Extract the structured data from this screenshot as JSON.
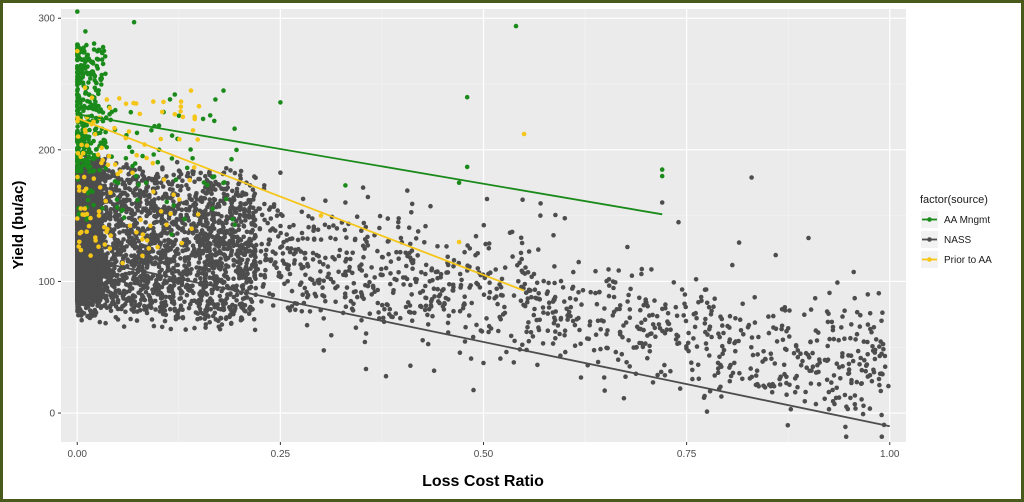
{
  "chart_data": {
    "type": "scatter",
    "title": "",
    "xlabel": "Loss Cost Ratio",
    "ylabel": "Yield (bu/ac)",
    "xlim": [
      -0.02,
      1.02
    ],
    "ylim": [
      -22,
      307
    ],
    "x_ticks": [
      0.0,
      0.25,
      0.5,
      0.75,
      1.0
    ],
    "x_tick_labels": [
      "0.00",
      "0.25",
      "0.50",
      "0.75",
      "1.00"
    ],
    "y_ticks": [
      0,
      100,
      200,
      300
    ],
    "y_tick_labels": [
      "0",
      "100",
      "200",
      "300"
    ],
    "grid": true,
    "panel_background": "#ebebeb",
    "legend": {
      "title": "factor(source)",
      "placement": "right",
      "entries": [
        "AA Mngmt",
        "NASS",
        "Prior to AA"
      ]
    },
    "series": [
      {
        "name": "NASS",
        "color": "#4d4d4d",
        "n_points_approx": 6000,
        "x_range": [
          0.0,
          1.0
        ],
        "dense_cluster": {
          "x": [
            0.0,
            0.2
          ],
          "y": [
            82,
            190
          ]
        },
        "points": [
          [
            0.83,
            179
          ],
          [
            0.9,
            133
          ],
          [
            0.72,
            160
          ],
          [
            0.74,
            145
          ],
          [
            0.57,
            150
          ],
          [
            0.6,
            148
          ],
          [
            0.78,
            75
          ],
          [
            0.86,
            64
          ],
          [
            0.93,
            63
          ],
          [
            0.99,
            45
          ],
          [
            0.99,
            30
          ],
          [
            0.95,
            33
          ],
          [
            0.38,
            28
          ],
          [
            0.41,
            36
          ],
          [
            0.5,
            38
          ],
          [
            0.62,
            27
          ],
          [
            0.28,
            95
          ],
          [
            0.33,
            160
          ],
          [
            0.66,
            95
          ]
        ],
        "fit_line": {
          "x": [
            0.0,
            1.0
          ],
          "y": [
            118,
            -10
          ]
        }
      },
      {
        "name": "AA Mngmt",
        "color": "#1a8a1a",
        "n_points_approx": 420,
        "x_range": [
          0.0,
          0.72
        ],
        "dense_cluster": {
          "x": [
            0.0,
            0.04
          ],
          "y": [
            175,
            282
          ]
        },
        "points": [
          [
            0.0,
            305
          ],
          [
            0.07,
            297
          ],
          [
            0.54,
            294
          ],
          [
            0.18,
            245
          ],
          [
            0.12,
            242
          ],
          [
            0.48,
            240
          ],
          [
            0.25,
            236
          ],
          [
            0.72,
            185
          ],
          [
            0.72,
            180
          ],
          [
            0.48,
            187
          ],
          [
            0.33,
            173
          ],
          [
            0.47,
            175
          ],
          [
            0.0,
            280
          ],
          [
            0.01,
            290
          ]
        ],
        "fit_line": {
          "x": [
            0.0,
            0.72
          ],
          "y": [
            227,
            151
          ]
        }
      },
      {
        "name": "Prior to AA",
        "color": "#f5c518",
        "n_points_approx": 110,
        "x_range": [
          0.0,
          0.55
        ],
        "dense_cluster": {
          "x": [
            0.0,
            0.14
          ],
          "y": [
            120,
            240
          ]
        },
        "points": [
          [
            0.14,
            245
          ],
          [
            0.12,
            227
          ],
          [
            0.13,
            225
          ],
          [
            0.55,
            212
          ],
          [
            0.47,
            130
          ],
          [
            0.06,
            235
          ],
          [
            0.04,
            125
          ],
          [
            0.08,
            132
          ],
          [
            0.3,
            150
          ],
          [
            0.0,
            275
          ]
        ],
        "fit_line": {
          "x": [
            0.0,
            0.55
          ],
          "y": [
            224,
            93
          ]
        }
      }
    ]
  }
}
